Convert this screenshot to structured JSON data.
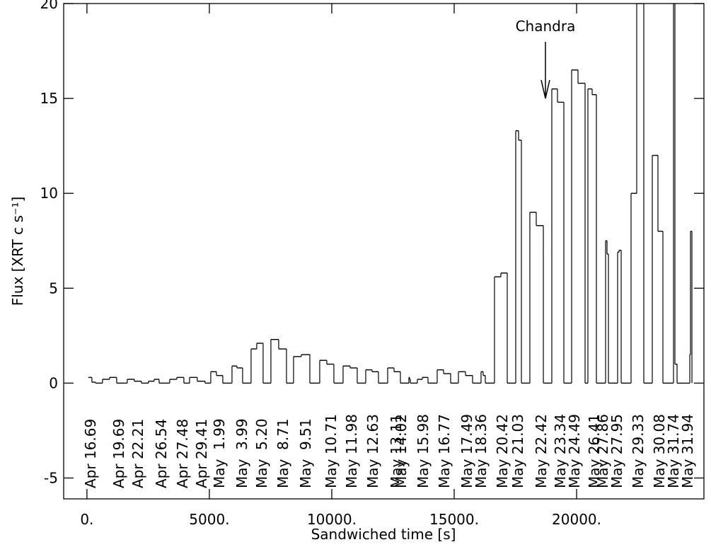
{
  "chart_data": {
    "type": "step",
    "xlabel": "Sandwiched time [s]",
    "ylabel": "Flux [XRT c s⁻¹]",
    "color": "#000000",
    "xlim": [
      -950,
      25200
    ],
    "ylim": [
      -6.1,
      20
    ],
    "xticks": [
      {
        "value": 0,
        "label": "0."
      },
      {
        "value": 5000,
        "label": "5000."
      },
      {
        "value": 10000,
        "label": "10000."
      },
      {
        "value": 15000,
        "label": "15000."
      },
      {
        "value": 20000,
        "label": "20000."
      }
    ],
    "yticks": [
      -5,
      0,
      5,
      10,
      15,
      20
    ],
    "x": [
      58,
      202,
      347,
      636,
      925,
      1214,
      1647,
      1936,
      2225,
      2514,
      2746,
      2948,
      3381,
      3670,
      3959,
      4191,
      4508,
      4826,
      5058,
      5289,
      5549,
      5925,
      6127,
      6358,
      6705,
      6936,
      7196,
      7514,
      7832,
      8150,
      8439,
      8757,
      9104,
      9508,
      9797,
      10086,
      10462,
      10751,
      11040,
      11387,
      11647,
      11907,
      12283,
      12543,
      12803,
      13150,
      13178,
      13208,
      13496,
      13699,
      13930,
      14306,
      14566,
      14855,
      15173,
      15462,
      15751,
      16097,
      16184,
      16271,
      16646,
      16907,
      17167,
      17513,
      17629,
      17745,
      18091,
      18351,
      18641,
      18987,
      19219,
      19479,
      19797,
      20057,
      20346,
      20461,
      20635,
      20808,
      21184,
      21242,
      21300,
      21675,
      21733,
      21820,
      22224,
      22455,
      22744,
      23091,
      23322,
      23525,
      23958,
      24016,
      24103,
      24623,
      24652,
      24710
    ],
    "values": [
      0.3,
      0.05,
      0,
      0.2,
      0.3,
      0,
      0.2,
      0.1,
      0,
      0.1,
      0.2,
      0,
      0.2,
      0.3,
      0,
      0.3,
      0.1,
      0,
      0.6,
      0.4,
      0,
      0.9,
      0.8,
      0,
      1.8,
      2.1,
      0,
      2.3,
      1.8,
      0,
      1.4,
      1.5,
      0,
      1.2,
      1.0,
      0,
      0.9,
      0.8,
      0,
      0.7,
      0.6,
      0,
      0.8,
      0.6,
      0,
      0.3,
      0.2,
      0,
      0.2,
      0.3,
      0,
      0.7,
      0.5,
      0,
      0.6,
      0.4,
      0,
      0.6,
      0.4,
      0,
      5.6,
      5.8,
      0,
      13.3,
      12.8,
      0,
      9.0,
      8.3,
      0,
      15.5,
      14.8,
      0,
      16.5,
      15.8,
      0,
      15.5,
      15.2,
      0,
      7.5,
      6.8,
      0,
      6.9,
      7.0,
      0,
      10,
      20,
      0,
      12,
      8,
      0,
      20,
      1,
      0,
      1.5,
      8,
      0
    ],
    "date_labels": {
      "x": [
        145,
        1300,
        2081,
        3035,
        3902,
        4682,
        5405,
        6329,
        7139,
        8006,
        8931,
        9971,
        10809,
        11676,
        12630,
        12832,
        13728,
        14595,
        15520,
        16098,
        16965,
        17601,
        18555,
        19335,
        19913,
        20723,
        21069,
        21647,
        22514,
        23382,
        23960,
        24538
      ],
      "labels": [
        "Apr 16.69",
        "Apr 19.69",
        "Apr 22.21",
        "Apr 26.54",
        "Apr 27.48",
        "Apr 29.41",
        "May  1.99",
        "May  3.99",
        "May  5.20",
        "May  8.71",
        "May  9.51",
        "May 10.71",
        "May 11.98",
        "May 12.63",
        "May 13.11",
        "May 14.02",
        "May 15.98",
        "May 16.77",
        "May 17.49",
        "May 18.36",
        "May 20.42",
        "May 21.03",
        "May 22.42",
        "May 23.34",
        "May 24.49",
        "May 26.41",
        "May 27.86",
        "May 27.95",
        "May 29.33",
        "May 30.08",
        "May 31.74",
        "May 31.94"
      ]
    },
    "annotations": [
      {
        "text": "Chandra",
        "x": 18727,
        "y": 15
      }
    ]
  }
}
